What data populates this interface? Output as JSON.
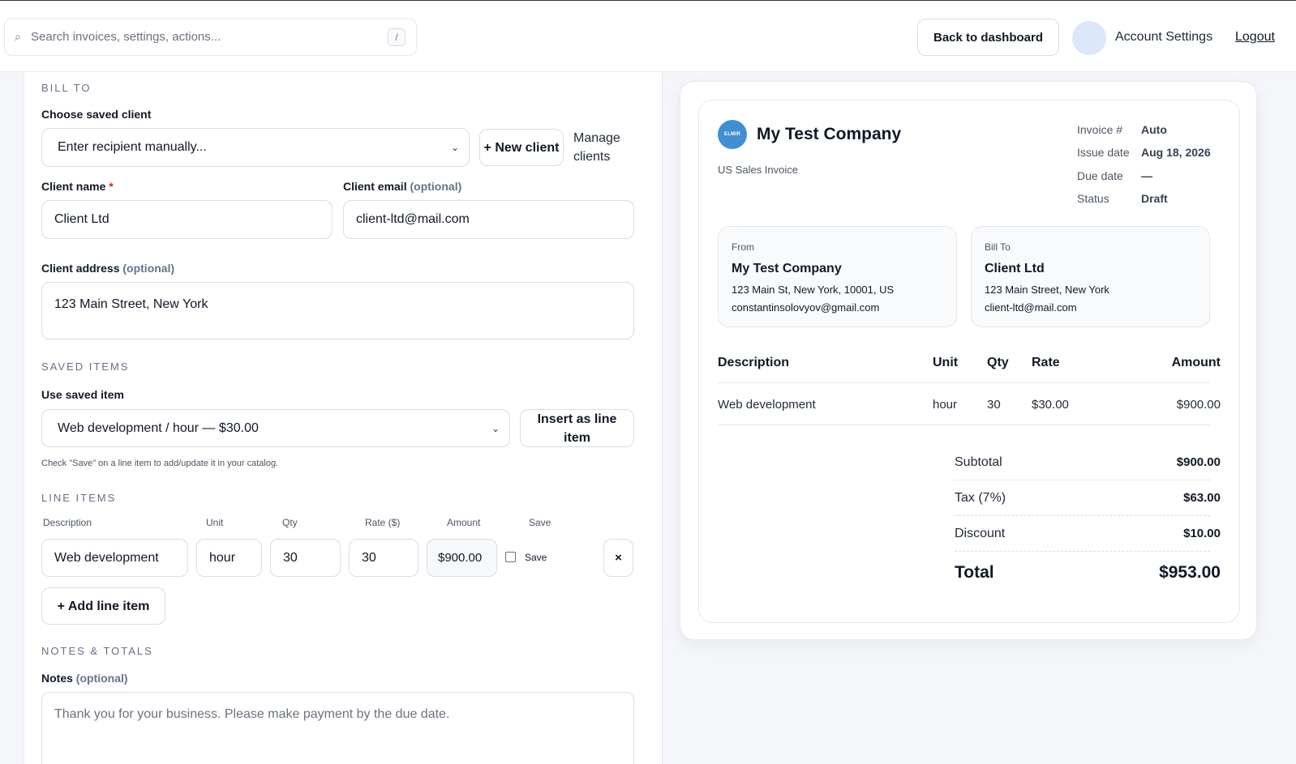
{
  "header": {
    "search_placeholder": "Search invoices, settings, actions...",
    "search_shortcut": "/",
    "back_label": "Back to dashboard",
    "account_label": "Account Settings",
    "logout_label": "Logout"
  },
  "form": {
    "bill_to": {
      "section": "BILL TO",
      "choose_label": "Choose saved client",
      "client_select_value": "Enter recipient manually...",
      "new_client_label": "+ New client",
      "manage_clients_label": "Manage clients",
      "client_name_label": "Client name",
      "required_mark": "*",
      "client_name_value": "Client Ltd",
      "client_email_label": "Client email",
      "optional": "(optional)",
      "client_email_value": "client-ltd@mail.com",
      "client_address_label": "Client address",
      "client_address_value": "123 Main Street, New York"
    },
    "saved_items": {
      "section": "SAVED ITEMS",
      "use_label": "Use saved item",
      "select_value": "Web development / hour — $30.00",
      "insert_label": "Insert as line item",
      "hint": "Check \"Save\" on a line item to add/update it in your catalog."
    },
    "line_items": {
      "section": "LINE ITEMS",
      "columns": [
        "Description",
        "Unit",
        "Qty",
        "Rate ($)",
        "Amount",
        "Save"
      ],
      "rows": [
        {
          "description": "Web development",
          "unit": "hour",
          "qty": "30",
          "rate": "30",
          "amount": "$900.00",
          "save_label": "Save",
          "save_checked": false
        }
      ],
      "remove_label": "×",
      "add_label": "+ Add line item"
    },
    "notes": {
      "section": "NOTES & TOTALS",
      "label": "Notes",
      "optional": "(optional)",
      "placeholder": "Thank you for your business. Please make payment by the due date."
    }
  },
  "preview": {
    "logo_text": "ELMIR",
    "company": "My Test Company",
    "subtitle": "US Sales Invoice",
    "meta": [
      {
        "key": "Invoice #",
        "value": "Auto"
      },
      {
        "key": "Issue date",
        "value": "Aug 18, 2026"
      },
      {
        "key": "Due date",
        "value": "—"
      },
      {
        "key": "Status",
        "value": "Draft"
      }
    ],
    "from": {
      "label": "From",
      "name": "My Test Company",
      "line1": "123 Main St, New York, 10001, US",
      "line2": "constantinsolovyov@gmail.com"
    },
    "bill_to": {
      "label": "Bill To",
      "name": "Client Ltd",
      "line1": "123 Main Street, New York",
      "line2": "client-ltd@mail.com"
    },
    "table_headers": [
      "Description",
      "Unit",
      "Qty",
      "Rate",
      "Amount"
    ],
    "rows": [
      {
        "description": "Web development",
        "unit": "hour",
        "qty": "30",
        "rate": "$30.00",
        "amount": "$900.00"
      }
    ],
    "totals": {
      "subtotal_label": "Subtotal",
      "subtotal": "$900.00",
      "tax_label": "Tax (7%)",
      "tax": "$63.00",
      "discount_label": "Discount",
      "discount": "$10.00",
      "total_label": "Total",
      "total": "$953.00"
    }
  }
}
